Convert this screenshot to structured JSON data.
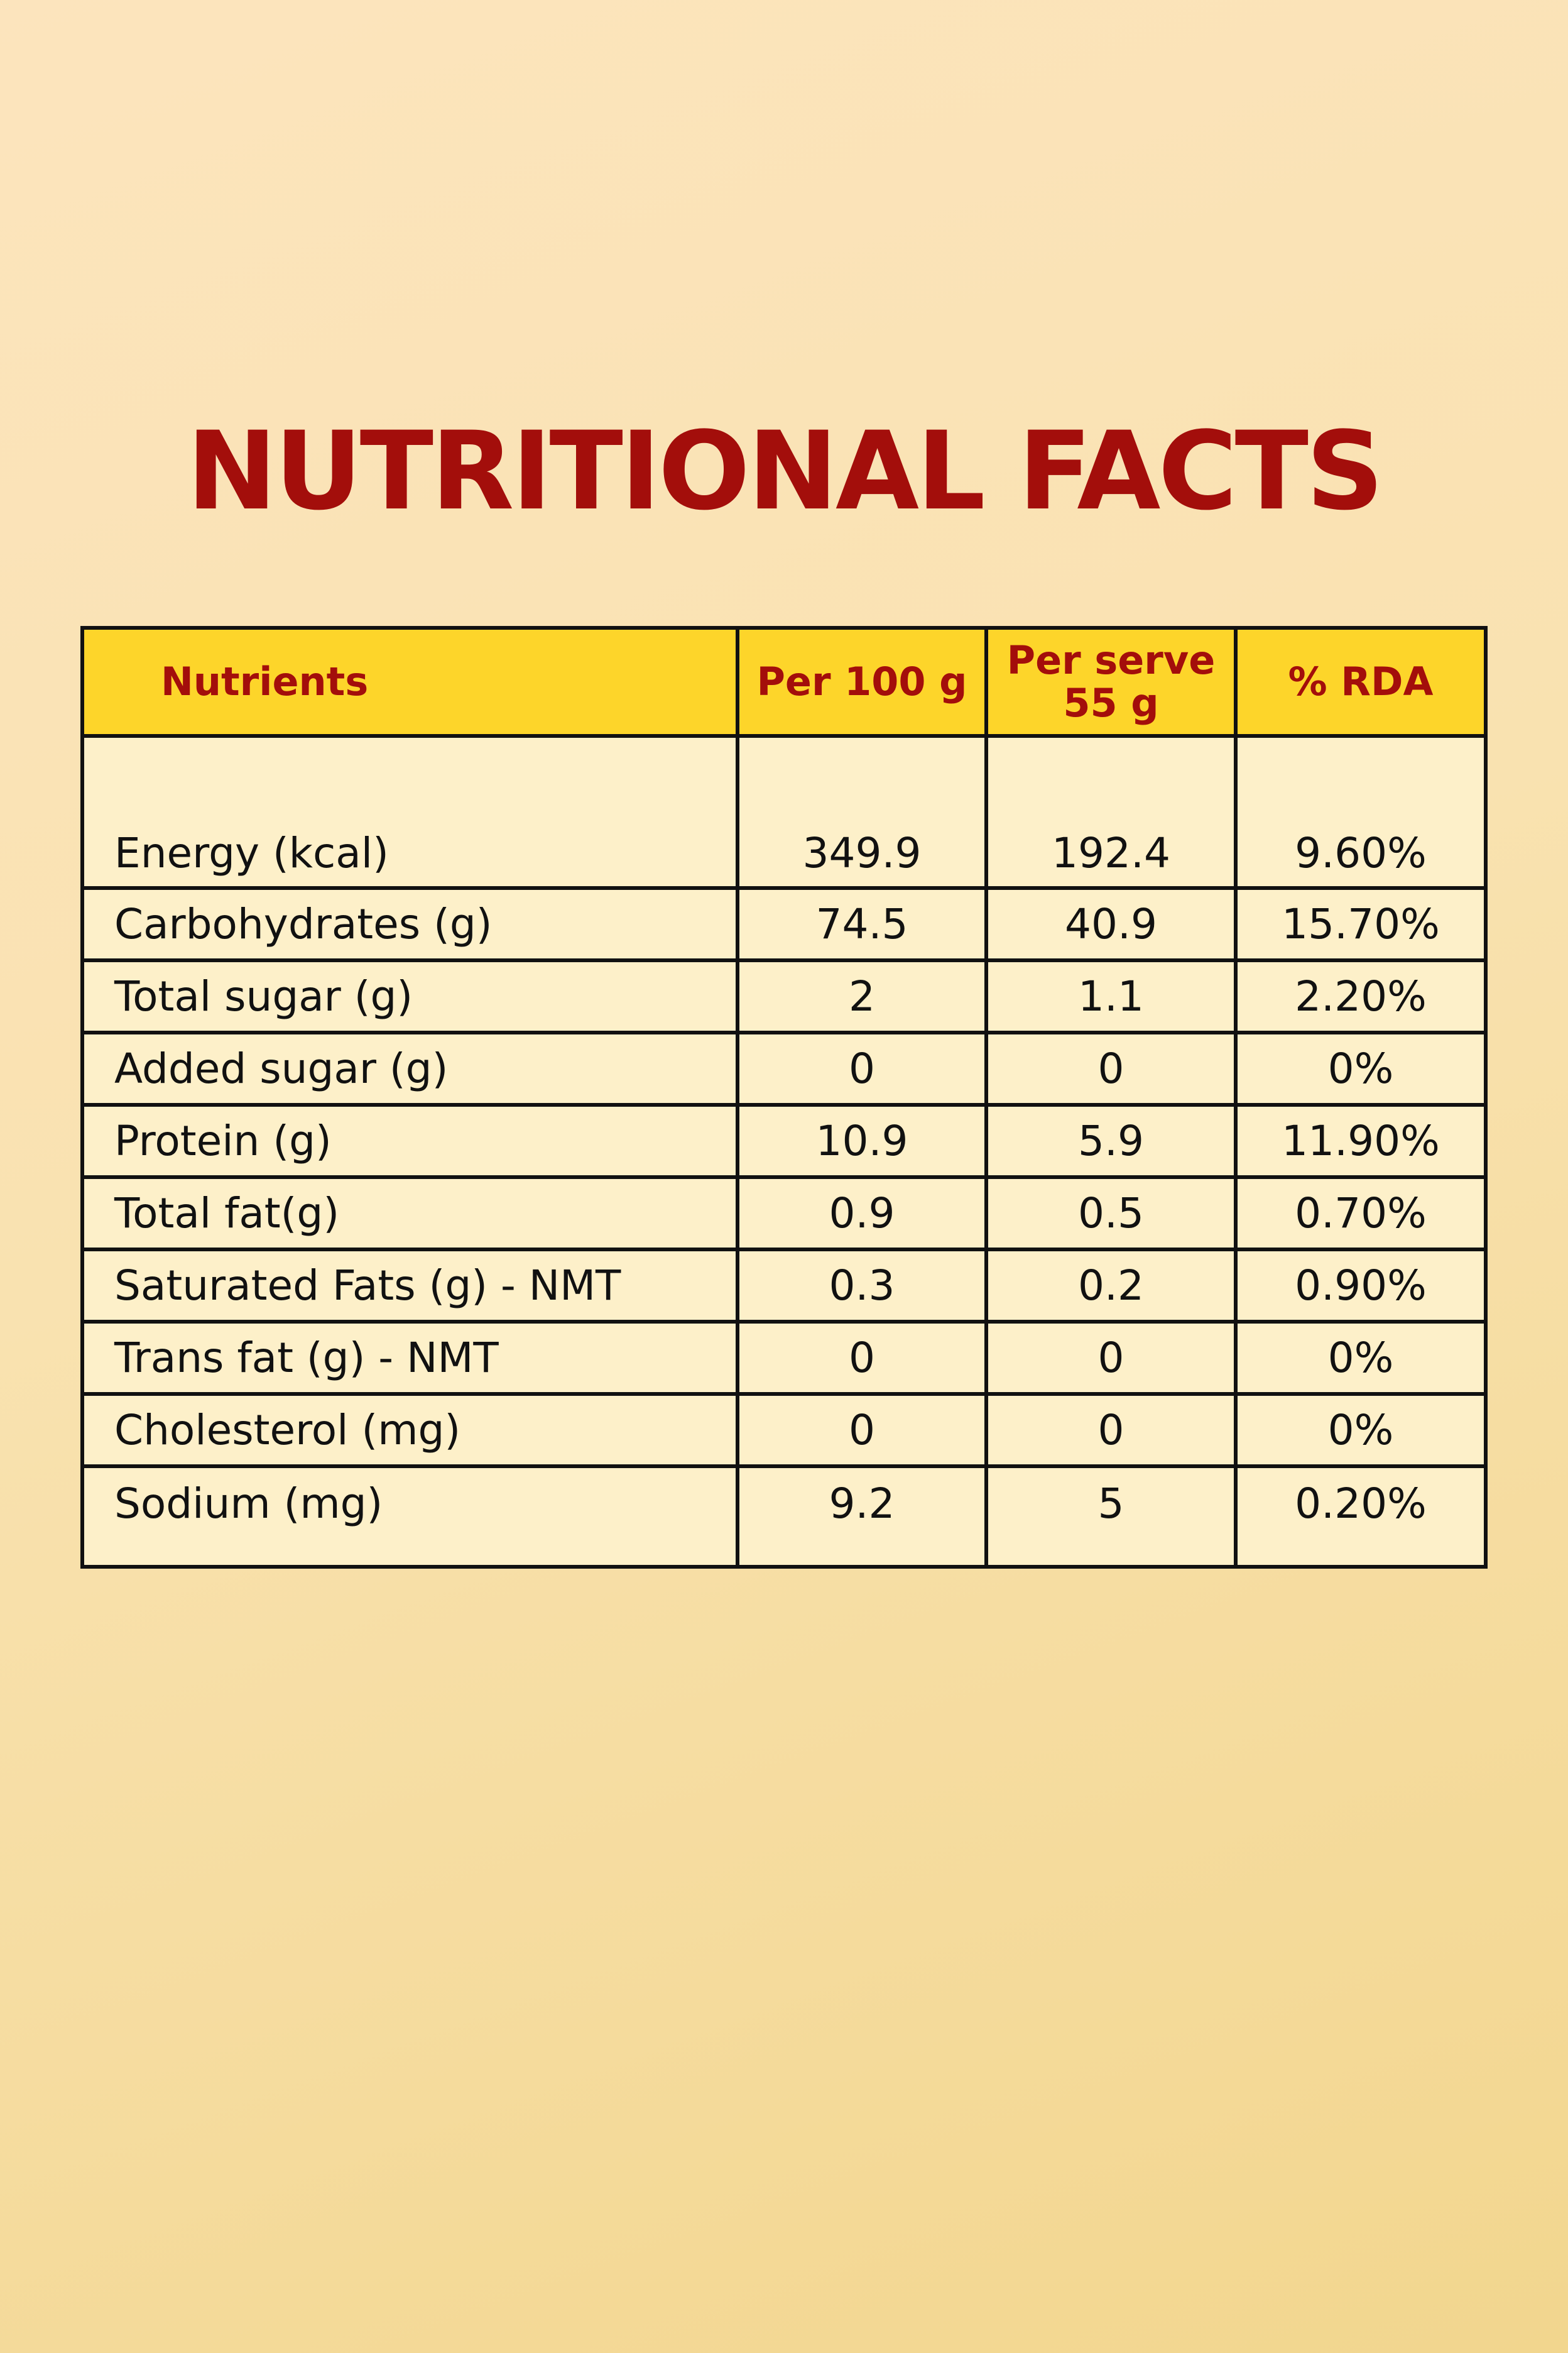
{
  "title": "NUTRITIONAL FACTS",
  "table": {
    "headers": {
      "nutrients": "Nutrients",
      "per100": "Per 100 g",
      "perServeLine1": "Per serve",
      "perServeLine2": "55 g",
      "rda": "% RDA"
    },
    "rows": [
      {
        "name": "Energy (kcal)",
        "per100": "349.9",
        "perServe": "192.4",
        "rda": "9.60%"
      },
      {
        "name": "Carbohydrates (g)",
        "per100": "74.5",
        "perServe": "40.9",
        "rda": "15.70%"
      },
      {
        "name": "Total sugar (g)",
        "per100": "2",
        "perServe": "1.1",
        "rda": "2.20%"
      },
      {
        "name": "Added sugar (g)",
        "per100": "0",
        "perServe": "0",
        "rda": "0%"
      },
      {
        "name": "Protein (g)",
        "per100": "10.9",
        "perServe": "5.9",
        "rda": "11.90%"
      },
      {
        "name": "Total fat(g)",
        "per100": "0.9",
        "perServe": "0.5",
        "rda": "0.70%"
      },
      {
        "name": "Saturated Fats (g) - NMT",
        "per100": "0.3",
        "perServe": "0.2",
        "rda": "0.90%"
      },
      {
        "name": "Trans fat (g) - NMT",
        "per100": "0",
        "perServe": "0",
        "rda": "0%"
      },
      {
        "name": "Cholesterol (mg)",
        "per100": "0",
        "perServe": "0",
        "rda": "0%"
      },
      {
        "name": "Sodium (mg)",
        "per100": "9.2",
        "perServe": "5",
        "rda": "0.20%"
      }
    ]
  },
  "colors": {
    "title": "#a30e0b",
    "headerBackground": "#fdd52a",
    "headerText": "#a30e0b",
    "cellBackground": "#fdf0c9",
    "border": "#111111"
  }
}
